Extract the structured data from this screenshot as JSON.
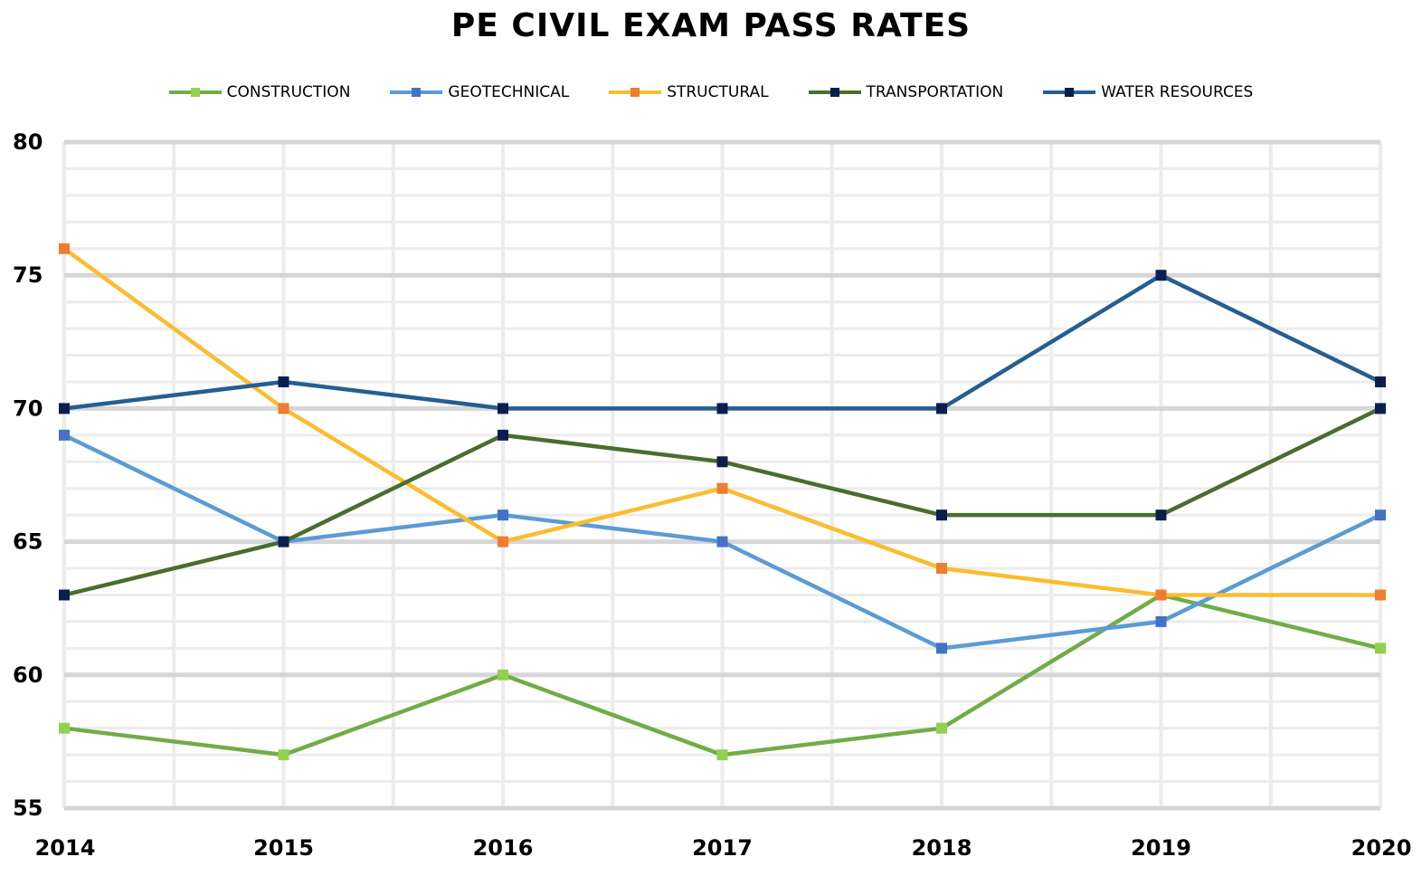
{
  "chart_data": {
    "type": "line",
    "title": "PE CIVIL EXAM PASS RATES",
    "xlabel": "",
    "ylabel": "",
    "x": [
      2014,
      2015,
      2016,
      2017,
      2018,
      2019,
      2020
    ],
    "ylim": [
      55,
      80
    ],
    "yticks": [
      55,
      60,
      65,
      70,
      75,
      80
    ],
    "grid": true,
    "legend": "top",
    "series": [
      {
        "name": "CONSTRUCTION",
        "line_color": "#70AD47",
        "marker_color": "#92D050",
        "values": [
          58,
          57,
          60,
          57,
          58,
          63,
          61
        ]
      },
      {
        "name": "GEOTECHNICAL",
        "line_color": "#5B9BD5",
        "marker_color": "#4472C4",
        "values": [
          69,
          65,
          66,
          65,
          61,
          62,
          66
        ]
      },
      {
        "name": "STRUCTURAL",
        "line_color": "#FBBC2F",
        "marker_color": "#ED7D31",
        "values": [
          76,
          70,
          65,
          67,
          64,
          63,
          63
        ]
      },
      {
        "name": "TRANSPORTATION",
        "line_color": "#4A6D2C",
        "marker_color": "#0B1F4F",
        "values": [
          63,
          65,
          69,
          68,
          66,
          66,
          70
        ]
      },
      {
        "name": "WATER RESOURCES",
        "line_color": "#255E91",
        "marker_color": "#0B1F4F",
        "values": [
          70,
          71,
          70,
          70,
          70,
          75,
          71
        ]
      }
    ]
  }
}
